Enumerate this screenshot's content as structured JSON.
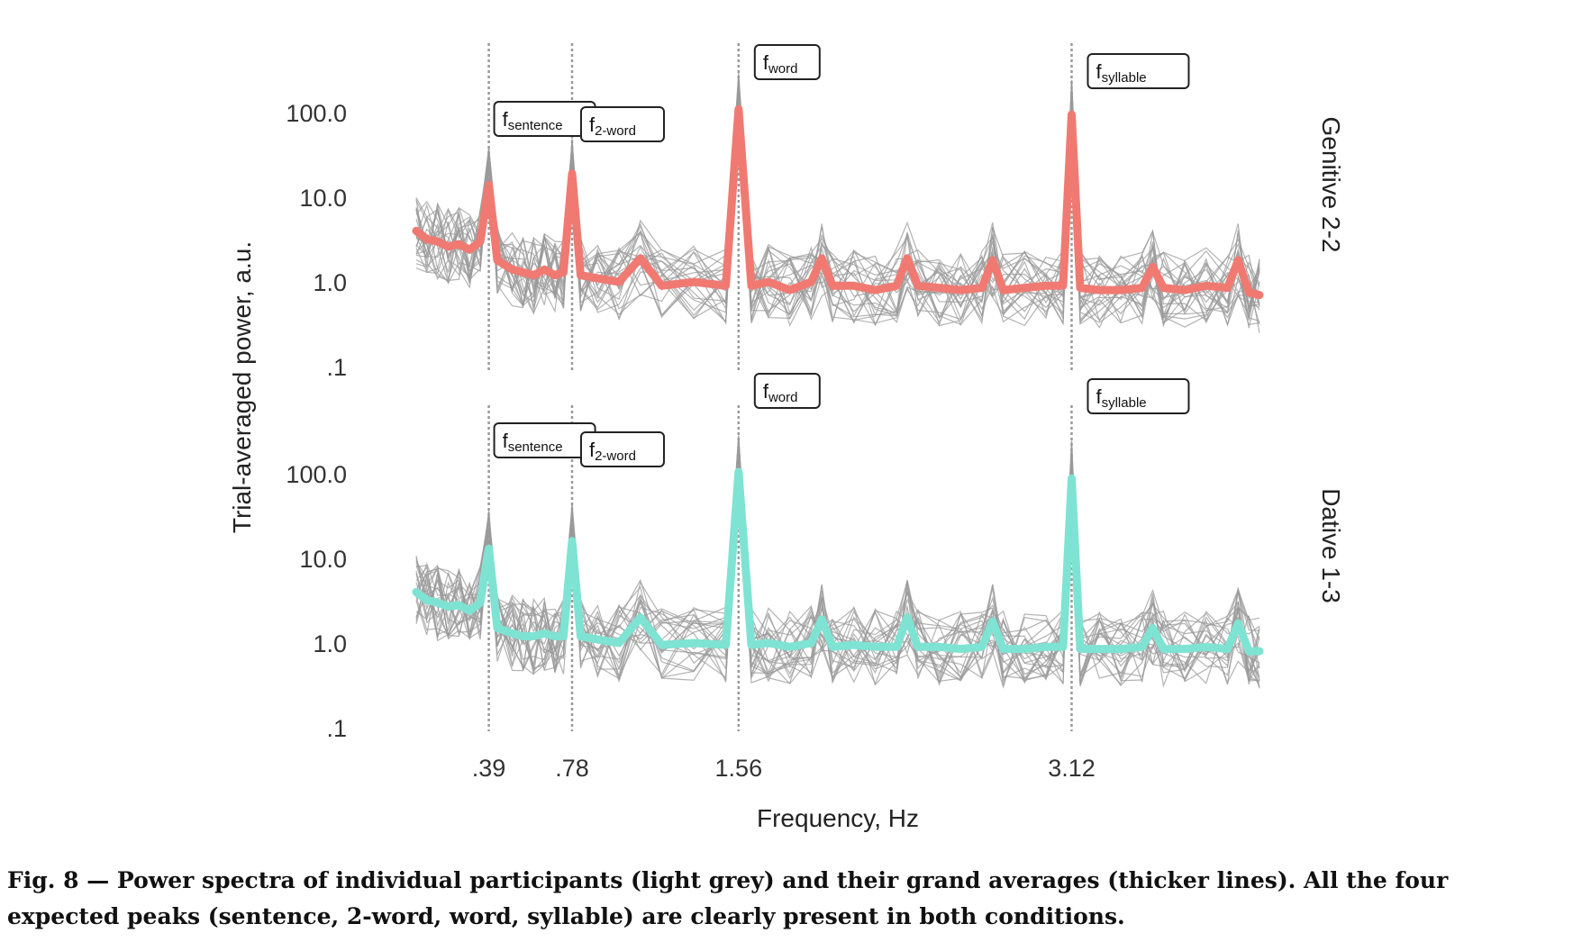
{
  "chart_data": {
    "type": "line",
    "y_label": "Trial-averaged power, a.u.",
    "x_label": "Frequency, Hz",
    "y_scale": "log",
    "y_ticks": [
      {
        "value": 0.1,
        "label": ".1"
      },
      {
        "value": 1,
        "label": "1.0"
      },
      {
        "value": 10,
        "label": "10.0"
      },
      {
        "value": 100,
        "label": "100.0"
      }
    ],
    "x_ticks": [
      {
        "value": 0.39,
        "label": ".39"
      },
      {
        "value": 0.78,
        "label": ".78"
      },
      {
        "value": 1.56,
        "label": "1.56"
      },
      {
        "value": 3.12,
        "label": "3.12"
      }
    ],
    "x_range": [
      0.05,
      4.0
    ],
    "ylim": [
      0.1,
      400
    ],
    "grid": false,
    "reference_lines_x": [
      0.39,
      0.78,
      1.56,
      3.12
    ],
    "peak_labels": [
      {
        "x": 0.39,
        "base": "f",
        "sub": "sentence"
      },
      {
        "x": 0.78,
        "base": "f",
        "sub": "2-word"
      },
      {
        "x": 1.56,
        "base": "f",
        "sub": "word"
      },
      {
        "x": 3.12,
        "base": "f",
        "sub": "syllable"
      }
    ],
    "panels": [
      {
        "name": "Genitive 2-2",
        "color": "#f07a72",
        "x": [
          0.05,
          0.1,
          0.15,
          0.2,
          0.25,
          0.3,
          0.35,
          0.39,
          0.43,
          0.5,
          0.55,
          0.6,
          0.65,
          0.7,
          0.74,
          0.78,
          0.82,
          0.9,
          1.0,
          1.1,
          1.2,
          1.35,
          1.5,
          1.56,
          1.62,
          1.7,
          1.8,
          1.9,
          1.95,
          2.0,
          2.1,
          2.2,
          2.3,
          2.35,
          2.4,
          2.5,
          2.6,
          2.7,
          2.75,
          2.8,
          2.9,
          3.0,
          3.08,
          3.12,
          3.16,
          3.25,
          3.35,
          3.45,
          3.5,
          3.55,
          3.65,
          3.75,
          3.85,
          3.9,
          3.95,
          4.0
        ],
        "grand_average": [
          4.0,
          3.2,
          3.0,
          2.6,
          2.8,
          2.4,
          3.0,
          14,
          1.8,
          1.4,
          1.3,
          1.2,
          1.4,
          1.2,
          1.3,
          19,
          1.2,
          1.1,
          1.0,
          1.9,
          0.9,
          1.0,
          0.9,
          110,
          0.9,
          1.0,
          0.8,
          1.0,
          1.9,
          0.9,
          0.9,
          0.8,
          0.9,
          1.9,
          0.9,
          0.85,
          0.8,
          0.85,
          1.8,
          0.8,
          0.85,
          0.9,
          0.9,
          95,
          0.85,
          0.8,
          0.8,
          0.85,
          1.5,
          0.85,
          0.8,
          0.9,
          0.85,
          1.8,
          0.75,
          0.7
        ]
      },
      {
        "name": "Dative 1-3",
        "color": "#7fe3d3",
        "x": [
          0.05,
          0.1,
          0.15,
          0.2,
          0.25,
          0.3,
          0.35,
          0.39,
          0.43,
          0.5,
          0.55,
          0.6,
          0.65,
          0.7,
          0.74,
          0.78,
          0.82,
          0.9,
          1.0,
          1.1,
          1.2,
          1.35,
          1.5,
          1.56,
          1.62,
          1.7,
          1.8,
          1.9,
          1.95,
          2.0,
          2.1,
          2.2,
          2.3,
          2.35,
          2.4,
          2.5,
          2.6,
          2.7,
          2.75,
          2.8,
          2.9,
          3.0,
          3.08,
          3.12,
          3.16,
          3.25,
          3.35,
          3.45,
          3.5,
          3.55,
          3.65,
          3.75,
          3.85,
          3.9,
          3.95,
          4.0
        ],
        "grand_average": [
          4.0,
          3.2,
          3.0,
          2.7,
          2.8,
          2.4,
          3.0,
          13,
          1.5,
          1.3,
          1.2,
          1.2,
          1.3,
          1.2,
          1.2,
          16,
          1.2,
          1.1,
          1.0,
          2.0,
          0.95,
          1.0,
          0.95,
          105,
          0.95,
          1.0,
          0.9,
          1.0,
          1.9,
          0.9,
          0.95,
          0.9,
          0.9,
          2.0,
          0.9,
          0.9,
          0.85,
          0.9,
          1.8,
          0.85,
          0.85,
          0.9,
          0.9,
          88,
          0.85,
          0.85,
          0.85,
          0.9,
          1.5,
          0.85,
          0.85,
          0.9,
          0.85,
          1.7,
          0.8,
          0.8
        ]
      }
    ],
    "individual_series_count": 24
  },
  "caption": {
    "text": "Fig. 8 — Power spectra of individual participants (light grey) and their grand averages (thicker lines). All the four expected peaks (sentence, 2-word, word, syllable) are clearly present in both conditions."
  }
}
